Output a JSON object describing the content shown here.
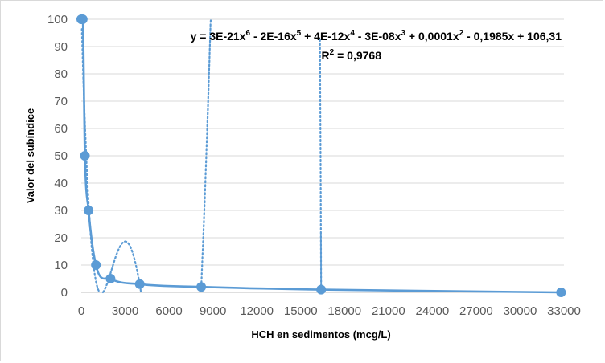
{
  "chart_data": {
    "type": "scatter",
    "title": "",
    "xlabel": "HCH en sedimentos (mcg/L)",
    "ylabel": "Valor del subíndice",
    "xlim": [
      0,
      33000
    ],
    "ylim": [
      0,
      100
    ],
    "x_ticks": [
      "0",
      "3000",
      "6000",
      "9000",
      "12000",
      "15000",
      "18000",
      "21000",
      "24000",
      "27000",
      "30000",
      "33000"
    ],
    "y_ticks": [
      "0",
      "10",
      "20",
      "30",
      "40",
      "50",
      "60",
      "70",
      "80",
      "90",
      "100"
    ],
    "grid": true,
    "legend": "none",
    "series": [
      {
        "points": [
          {
            "x": 0,
            "y": 100
          },
          {
            "x": 100,
            "y": 100
          },
          {
            "x": 250,
            "y": 50
          },
          {
            "x": 500,
            "y": 30
          },
          {
            "x": 1000,
            "y": 10
          },
          {
            "x": 2000,
            "y": 5
          },
          {
            "x": 4000,
            "y": 3
          },
          {
            "x": 8200,
            "y": 2
          },
          {
            "x": 16400,
            "y": 1
          },
          {
            "x": 32800,
            "y": 0
          }
        ],
        "color": "#5b9bd5"
      }
    ],
    "trendline": {
      "type": "polynomial",
      "order": 6,
      "style": "dotted",
      "color": "#5b9bd5",
      "equation": {
        "y_eq": "y = 3E-21x",
        "sup6": "6",
        "t2": " - 2E-16x",
        "sup5": "5",
        "t3": " + 4E-12x",
        "sup4": "4",
        "t4": " - 3E-08x",
        "sup3": "3",
        "t5": " + 0,0001x",
        "sup2": "2",
        "t6": " - 0,1985x + 106,31"
      },
      "r_squared": {
        "label": "R",
        "sup": "2",
        "value": " = 0,9768"
      }
    },
    "gridline_color": "#d9d9d9",
    "tick_color": "#595959"
  }
}
